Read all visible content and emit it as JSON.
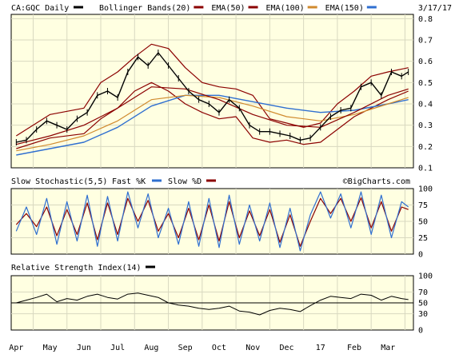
{
  "header": {
    "symbol_label": "CA:GQC Daily",
    "date": "3/17/17",
    "legend": [
      {
        "label": "Bollinger Bands(20)",
        "color": "#8B0000"
      },
      {
        "label": "EMA(50)",
        "color": "#8B0000"
      },
      {
        "label": "EMA(100)",
        "color": "#D08A2E"
      },
      {
        "label": "EMA(150)",
        "color": "#2F6FD0"
      }
    ]
  },
  "stoch_panel": {
    "title": "Slow Stochastic(5,5)",
    "fast_label": "Fast %K",
    "slow_label": "Slow %D",
    "fast_color": "#2F6FD0",
    "slow_color": "#8B0000",
    "watermark": "©BigCharts.com"
  },
  "rsi_panel": {
    "title": "Relative Strength Index(14)",
    "color": "#000000"
  },
  "colors": {
    "panel_bg": "#FFFFE1",
    "grid": "#D8D8C0",
    "border": "#000000"
  },
  "chart_data": {
    "type": "line",
    "x_labels": [
      "Apr",
      "May",
      "Jun",
      "Jul",
      "Aug",
      "Sep",
      "Oct",
      "Nov",
      "Dec",
      "17",
      "Feb",
      "Mar"
    ],
    "price": {
      "y_ticks": [
        "0.8",
        "0.7",
        "0.6",
        "0.5",
        "0.4",
        "0.3",
        "0.2",
        "0.1"
      ],
      "ylim": [
        0.1,
        0.82
      ],
      "close": [
        {
          "x": 0,
          "y": 0.22
        },
        {
          "x": 0.3,
          "y": 0.23
        },
        {
          "x": 0.6,
          "y": 0.28
        },
        {
          "x": 0.9,
          "y": 0.32
        },
        {
          "x": 1.2,
          "y": 0.3
        },
        {
          "x": 1.5,
          "y": 0.28
        },
        {
          "x": 1.8,
          "y": 0.33
        },
        {
          "x": 2.1,
          "y": 0.36
        },
        {
          "x": 2.4,
          "y": 0.44
        },
        {
          "x": 2.7,
          "y": 0.46
        },
        {
          "x": 3.0,
          "y": 0.43
        },
        {
          "x": 3.3,
          "y": 0.55
        },
        {
          "x": 3.6,
          "y": 0.62
        },
        {
          "x": 3.9,
          "y": 0.58
        },
        {
          "x": 4.2,
          "y": 0.64
        },
        {
          "x": 4.5,
          "y": 0.58
        },
        {
          "x": 4.8,
          "y": 0.52
        },
        {
          "x": 5.1,
          "y": 0.46
        },
        {
          "x": 5.4,
          "y": 0.42
        },
        {
          "x": 5.7,
          "y": 0.4
        },
        {
          "x": 6.0,
          "y": 0.36
        },
        {
          "x": 6.3,
          "y": 0.42
        },
        {
          "x": 6.6,
          "y": 0.38
        },
        {
          "x": 6.9,
          "y": 0.3
        },
        {
          "x": 7.2,
          "y": 0.27
        },
        {
          "x": 7.5,
          "y": 0.27
        },
        {
          "x": 7.8,
          "y": 0.26
        },
        {
          "x": 8.1,
          "y": 0.25
        },
        {
          "x": 8.4,
          "y": 0.23
        },
        {
          "x": 8.7,
          "y": 0.24
        },
        {
          "x": 9.0,
          "y": 0.29
        },
        {
          "x": 9.3,
          "y": 0.34
        },
        {
          "x": 9.6,
          "y": 0.37
        },
        {
          "x": 9.9,
          "y": 0.38
        },
        {
          "x": 10.2,
          "y": 0.48
        },
        {
          "x": 10.5,
          "y": 0.5
        },
        {
          "x": 10.8,
          "y": 0.44
        },
        {
          "x": 11.1,
          "y": 0.55
        },
        {
          "x": 11.4,
          "y": 0.53
        },
        {
          "x": 11.6,
          "y": 0.55
        }
      ],
      "bb_upper": [
        {
          "x": 0,
          "y": 0.25
        },
        {
          "x": 1.0,
          "y": 0.35
        },
        {
          "x": 2.0,
          "y": 0.38
        },
        {
          "x": 2.5,
          "y": 0.5
        },
        {
          "x": 3.0,
          "y": 0.55
        },
        {
          "x": 3.5,
          "y": 0.62
        },
        {
          "x": 4.0,
          "y": 0.68
        },
        {
          "x": 4.5,
          "y": 0.66
        },
        {
          "x": 5.0,
          "y": 0.57
        },
        {
          "x": 5.5,
          "y": 0.5
        },
        {
          "x": 6.0,
          "y": 0.48
        },
        {
          "x": 6.5,
          "y": 0.47
        },
        {
          "x": 7.0,
          "y": 0.44
        },
        {
          "x": 7.5,
          "y": 0.33
        },
        {
          "x": 8.0,
          "y": 0.31
        },
        {
          "x": 8.5,
          "y": 0.29
        },
        {
          "x": 9.0,
          "y": 0.31
        },
        {
          "x": 9.5,
          "y": 0.4
        },
        {
          "x": 10.0,
          "y": 0.46
        },
        {
          "x": 10.5,
          "y": 0.53
        },
        {
          "x": 11.0,
          "y": 0.55
        },
        {
          "x": 11.6,
          "y": 0.57
        }
      ],
      "bb_lower": [
        {
          "x": 0,
          "y": 0.19
        },
        {
          "x": 1.0,
          "y": 0.24
        },
        {
          "x": 2.0,
          "y": 0.26
        },
        {
          "x": 2.5,
          "y": 0.33
        },
        {
          "x": 3.0,
          "y": 0.38
        },
        {
          "x": 3.5,
          "y": 0.46
        },
        {
          "x": 4.0,
          "y": 0.5
        },
        {
          "x": 4.5,
          "y": 0.46
        },
        {
          "x": 5.0,
          "y": 0.4
        },
        {
          "x": 5.5,
          "y": 0.36
        },
        {
          "x": 6.0,
          "y": 0.33
        },
        {
          "x": 6.5,
          "y": 0.34
        },
        {
          "x": 7.0,
          "y": 0.24
        },
        {
          "x": 7.5,
          "y": 0.22
        },
        {
          "x": 8.0,
          "y": 0.23
        },
        {
          "x": 8.5,
          "y": 0.21
        },
        {
          "x": 9.0,
          "y": 0.22
        },
        {
          "x": 9.5,
          "y": 0.28
        },
        {
          "x": 10.0,
          "y": 0.34
        },
        {
          "x": 10.5,
          "y": 0.38
        },
        {
          "x": 11.0,
          "y": 0.42
        },
        {
          "x": 11.6,
          "y": 0.46
        }
      ],
      "ema50": [
        {
          "x": 0,
          "y": 0.21
        },
        {
          "x": 1.0,
          "y": 0.25
        },
        {
          "x": 2.0,
          "y": 0.3
        },
        {
          "x": 3.0,
          "y": 0.38
        },
        {
          "x": 4.0,
          "y": 0.48
        },
        {
          "x": 5.0,
          "y": 0.47
        },
        {
          "x": 6.0,
          "y": 0.42
        },
        {
          "x": 7.0,
          "y": 0.35
        },
        {
          "x": 8.0,
          "y": 0.3
        },
        {
          "x": 9.0,
          "y": 0.29
        },
        {
          "x": 10.0,
          "y": 0.36
        },
        {
          "x": 11.0,
          "y": 0.44
        },
        {
          "x": 11.6,
          "y": 0.47
        }
      ],
      "ema100": [
        {
          "x": 0,
          "y": 0.18
        },
        {
          "x": 1.0,
          "y": 0.21
        },
        {
          "x": 2.0,
          "y": 0.25
        },
        {
          "x": 3.0,
          "y": 0.32
        },
        {
          "x": 4.0,
          "y": 0.42
        },
        {
          "x": 5.0,
          "y": 0.44
        },
        {
          "x": 6.0,
          "y": 0.43
        },
        {
          "x": 7.0,
          "y": 0.39
        },
        {
          "x": 8.0,
          "y": 0.34
        },
        {
          "x": 9.0,
          "y": 0.32
        },
        {
          "x": 10.0,
          "y": 0.35
        },
        {
          "x": 11.0,
          "y": 0.4
        },
        {
          "x": 11.6,
          "y": 0.43
        }
      ],
      "ema150": [
        {
          "x": 0,
          "y": 0.16
        },
        {
          "x": 1.0,
          "y": 0.19
        },
        {
          "x": 2.0,
          "y": 0.22
        },
        {
          "x": 3.0,
          "y": 0.29
        },
        {
          "x": 4.0,
          "y": 0.39
        },
        {
          "x": 5.0,
          "y": 0.44
        },
        {
          "x": 6.0,
          "y": 0.44
        },
        {
          "x": 7.0,
          "y": 0.41
        },
        {
          "x": 8.0,
          "y": 0.38
        },
        {
          "x": 9.0,
          "y": 0.36
        },
        {
          "x": 10.0,
          "y": 0.37
        },
        {
          "x": 11.0,
          "y": 0.4
        },
        {
          "x": 11.6,
          "y": 0.42
        }
      ]
    },
    "stochastic": {
      "y_ticks": [
        "100",
        "75",
        "50",
        "25",
        "0"
      ],
      "ylim": [
        0,
        100
      ],
      "fast": [
        {
          "x": 0,
          "y": 35
        },
        {
          "x": 0.3,
          "y": 72
        },
        {
          "x": 0.6,
          "y": 30
        },
        {
          "x": 0.9,
          "y": 85
        },
        {
          "x": 1.2,
          "y": 15
        },
        {
          "x": 1.5,
          "y": 80
        },
        {
          "x": 1.8,
          "y": 20
        },
        {
          "x": 2.1,
          "y": 90
        },
        {
          "x": 2.4,
          "y": 12
        },
        {
          "x": 2.7,
          "y": 88
        },
        {
          "x": 3.0,
          "y": 20
        },
        {
          "x": 3.3,
          "y": 95
        },
        {
          "x": 3.6,
          "y": 40
        },
        {
          "x": 3.9,
          "y": 92
        },
        {
          "x": 4.2,
          "y": 25
        },
        {
          "x": 4.5,
          "y": 70
        },
        {
          "x": 4.8,
          "y": 15
        },
        {
          "x": 5.1,
          "y": 80
        },
        {
          "x": 5.4,
          "y": 12
        },
        {
          "x": 5.7,
          "y": 85
        },
        {
          "x": 6.0,
          "y": 10
        },
        {
          "x": 6.3,
          "y": 90
        },
        {
          "x": 6.6,
          "y": 15
        },
        {
          "x": 6.9,
          "y": 75
        },
        {
          "x": 7.2,
          "y": 20
        },
        {
          "x": 7.5,
          "y": 78
        },
        {
          "x": 7.8,
          "y": 10
        },
        {
          "x": 8.1,
          "y": 70
        },
        {
          "x": 8.4,
          "y": 5
        },
        {
          "x": 8.7,
          "y": 60
        },
        {
          "x": 9.0,
          "y": 95
        },
        {
          "x": 9.3,
          "y": 55
        },
        {
          "x": 9.6,
          "y": 92
        },
        {
          "x": 9.9,
          "y": 40
        },
        {
          "x": 10.2,
          "y": 95
        },
        {
          "x": 10.5,
          "y": 30
        },
        {
          "x": 10.8,
          "y": 90
        },
        {
          "x": 11.1,
          "y": 25
        },
        {
          "x": 11.4,
          "y": 80
        },
        {
          "x": 11.6,
          "y": 72
        }
      ],
      "slow": [
        {
          "x": 0,
          "y": 45
        },
        {
          "x": 0.3,
          "y": 62
        },
        {
          "x": 0.6,
          "y": 42
        },
        {
          "x": 0.9,
          "y": 72
        },
        {
          "x": 1.2,
          "y": 28
        },
        {
          "x": 1.5,
          "y": 68
        },
        {
          "x": 1.8,
          "y": 30
        },
        {
          "x": 2.1,
          "y": 78
        },
        {
          "x": 2.4,
          "y": 22
        },
        {
          "x": 2.7,
          "y": 78
        },
        {
          "x": 3.0,
          "y": 30
        },
        {
          "x": 3.3,
          "y": 85
        },
        {
          "x": 3.6,
          "y": 50
        },
        {
          "x": 3.9,
          "y": 82
        },
        {
          "x": 4.2,
          "y": 35
        },
        {
          "x": 4.5,
          "y": 62
        },
        {
          "x": 4.8,
          "y": 25
        },
        {
          "x": 5.1,
          "y": 70
        },
        {
          "x": 5.4,
          "y": 22
        },
        {
          "x": 5.7,
          "y": 75
        },
        {
          "x": 6.0,
          "y": 20
        },
        {
          "x": 6.3,
          "y": 80
        },
        {
          "x": 6.6,
          "y": 25
        },
        {
          "x": 6.9,
          "y": 66
        },
        {
          "x": 7.2,
          "y": 28
        },
        {
          "x": 7.5,
          "y": 68
        },
        {
          "x": 7.8,
          "y": 18
        },
        {
          "x": 8.1,
          "y": 60
        },
        {
          "x": 8.4,
          "y": 12
        },
        {
          "x": 8.7,
          "y": 50
        },
        {
          "x": 9.0,
          "y": 85
        },
        {
          "x": 9.3,
          "y": 62
        },
        {
          "x": 9.6,
          "y": 85
        },
        {
          "x": 9.9,
          "y": 50
        },
        {
          "x": 10.2,
          "y": 86
        },
        {
          "x": 10.5,
          "y": 40
        },
        {
          "x": 10.8,
          "y": 80
        },
        {
          "x": 11.1,
          "y": 35
        },
        {
          "x": 11.4,
          "y": 72
        },
        {
          "x": 11.6,
          "y": 68
        }
      ]
    },
    "rsi": {
      "y_ticks": [
        "100",
        "70",
        "50",
        "30",
        "0"
      ],
      "ylim": [
        0,
        100
      ],
      "reference": 50,
      "values": [
        {
          "x": 0,
          "y": 50
        },
        {
          "x": 0.3,
          "y": 55
        },
        {
          "x": 0.6,
          "y": 60
        },
        {
          "x": 0.9,
          "y": 66
        },
        {
          "x": 1.2,
          "y": 52
        },
        {
          "x": 1.5,
          "y": 58
        },
        {
          "x": 1.8,
          "y": 55
        },
        {
          "x": 2.1,
          "y": 62
        },
        {
          "x": 2.4,
          "y": 66
        },
        {
          "x": 2.7,
          "y": 60
        },
        {
          "x": 3.0,
          "y": 57
        },
        {
          "x": 3.3,
          "y": 66
        },
        {
          "x": 3.6,
          "y": 68
        },
        {
          "x": 3.9,
          "y": 64
        },
        {
          "x": 4.2,
          "y": 60
        },
        {
          "x": 4.5,
          "y": 50
        },
        {
          "x": 4.8,
          "y": 46
        },
        {
          "x": 5.1,
          "y": 44
        },
        {
          "x": 5.4,
          "y": 40
        },
        {
          "x": 5.7,
          "y": 38
        },
        {
          "x": 6.0,
          "y": 40
        },
        {
          "x": 6.3,
          "y": 44
        },
        {
          "x": 6.6,
          "y": 35
        },
        {
          "x": 6.9,
          "y": 33
        },
        {
          "x": 7.2,
          "y": 28
        },
        {
          "x": 7.5,
          "y": 36
        },
        {
          "x": 7.8,
          "y": 40
        },
        {
          "x": 8.1,
          "y": 38
        },
        {
          "x": 8.4,
          "y": 34
        },
        {
          "x": 8.7,
          "y": 45
        },
        {
          "x": 9.0,
          "y": 55
        },
        {
          "x": 9.3,
          "y": 62
        },
        {
          "x": 9.6,
          "y": 60
        },
        {
          "x": 9.9,
          "y": 58
        },
        {
          "x": 10.2,
          "y": 66
        },
        {
          "x": 10.5,
          "y": 64
        },
        {
          "x": 10.8,
          "y": 55
        },
        {
          "x": 11.1,
          "y": 62
        },
        {
          "x": 11.4,
          "y": 58
        },
        {
          "x": 11.6,
          "y": 56
        }
      ]
    }
  }
}
